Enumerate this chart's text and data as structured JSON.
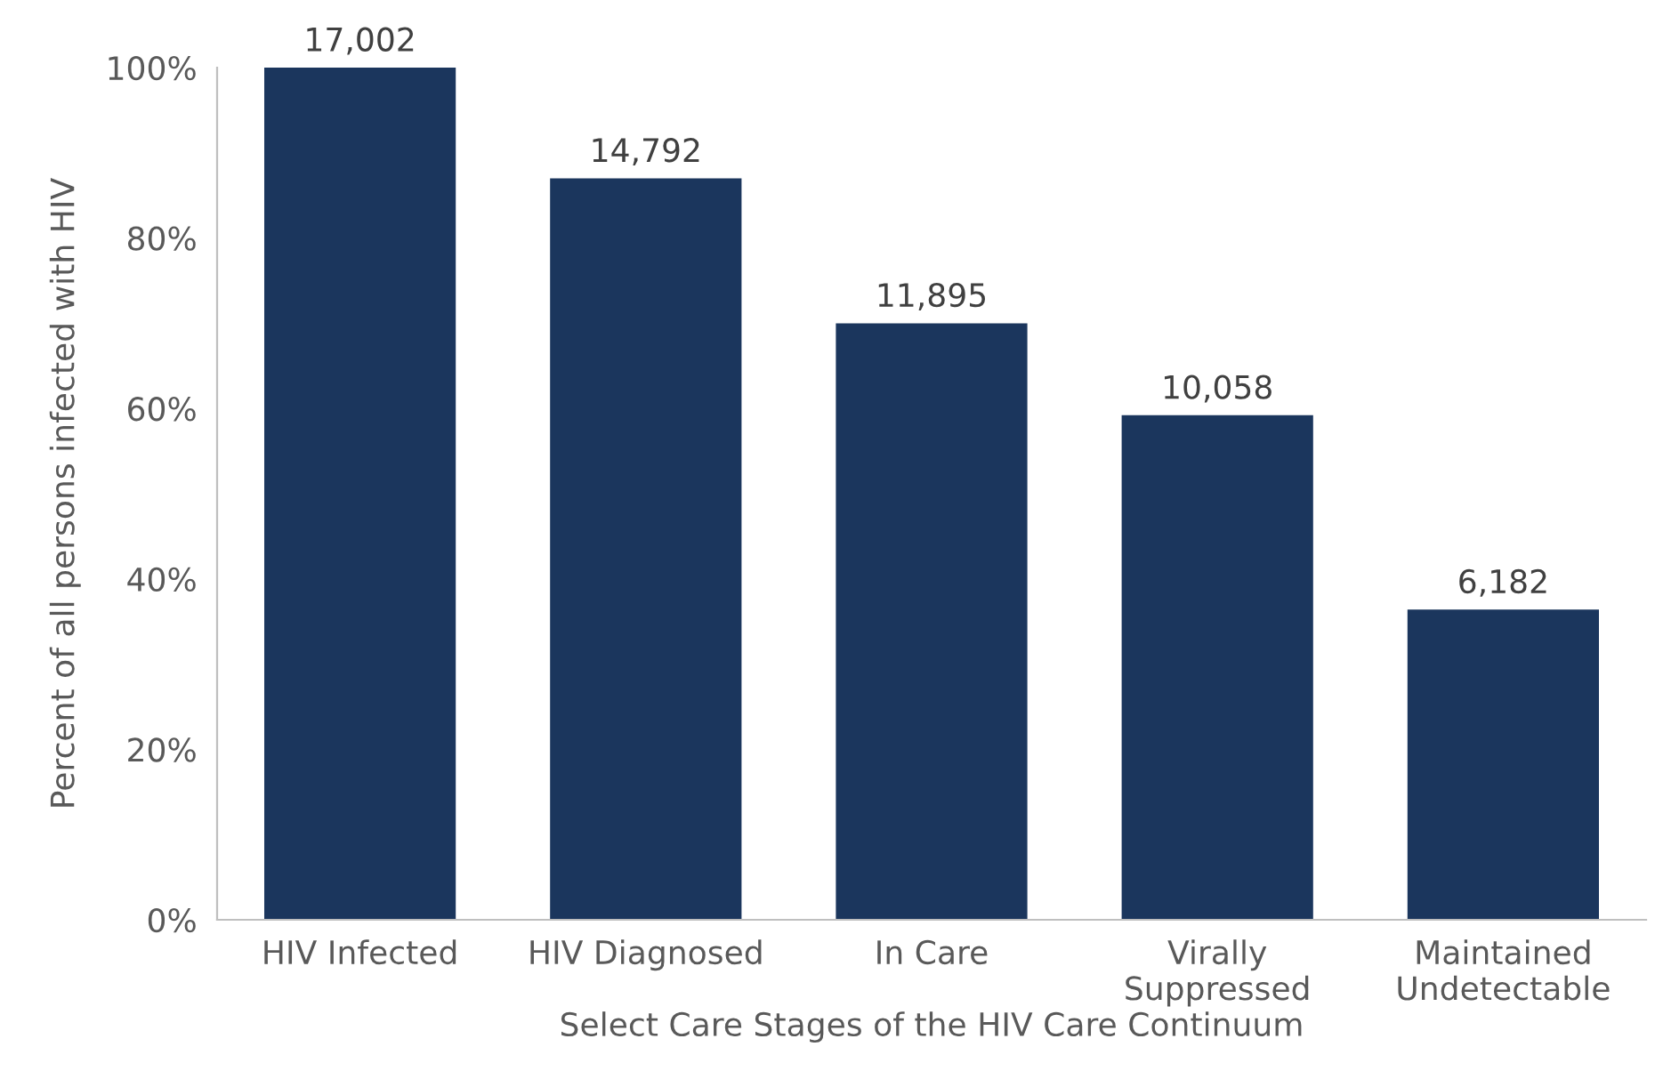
{
  "chart_data": {
    "type": "bar",
    "xlabel": "Select Care Stages of the HIV Care Continuum",
    "ylabel": "Percent of all persons infected with HIV",
    "categories": [
      "HIV Infected",
      "HIV Diagnosed",
      "In Care",
      "Virally\nSuppressed",
      "Maintained\nUndetectable"
    ],
    "values": [
      100,
      87.0,
      70.0,
      59.2,
      36.4
    ],
    "annotations": [
      {
        "text": "17,002",
        "x": "HIV Infected",
        "y": 100
      },
      {
        "text": "14,792",
        "x": "HIV Diagnosed",
        "y": 87.0
      },
      {
        "text": "11,895",
        "x": "In Care",
        "y": 70.0
      },
      {
        "text": "10,058",
        "x": "Virally\nSuppressed",
        "y": 59.2
      },
      {
        "text": "6,182",
        "x": "Maintained\nUndetectable",
        "y": 36.4
      }
    ],
    "color": "#1b365d",
    "ylim": [
      0,
      100
    ],
    "yticks": [
      {
        "value": 0,
        "label": "0%"
      },
      {
        "value": 20,
        "label": "20%"
      },
      {
        "value": 40,
        "label": "40%"
      },
      {
        "value": 60,
        "label": "60%"
      },
      {
        "value": 80,
        "label": "80%"
      },
      {
        "value": 100,
        "label": "100%"
      }
    ],
    "grid": false
  }
}
